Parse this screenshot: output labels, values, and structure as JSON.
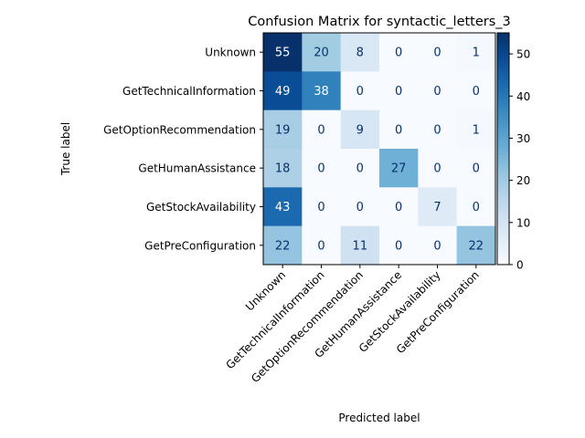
{
  "chart_data": {
    "type": "heatmap",
    "title": "Confusion Matrix for syntactic_letters_3",
    "xlabel": "Predicted label",
    "ylabel": "True label",
    "row_labels": [
      "Unknown",
      "GetTechnicalInformation",
      "GetOptionRecommendation",
      "GetHumanAssistance",
      "GetStockAvailability",
      "GetPreConfiguration"
    ],
    "col_labels": [
      "Unknown",
      "GetTechnicalInformation",
      "GetOptionRecommendation",
      "GetHumanAssistance",
      "GetStockAvailability",
      "GetPreConfiguration"
    ],
    "matrix": [
      [
        55,
        20,
        8,
        0,
        0,
        1
      ],
      [
        49,
        38,
        0,
        0,
        0,
        0
      ],
      [
        19,
        0,
        9,
        0,
        0,
        1
      ],
      [
        18,
        0,
        0,
        27,
        0,
        0
      ],
      [
        43,
        0,
        0,
        0,
        7,
        0
      ],
      [
        22,
        0,
        11,
        0,
        0,
        22
      ]
    ],
    "colormap": "Blues",
    "vmin": 0,
    "vmax": 55,
    "colorbar_ticks": [
      0,
      10,
      20,
      30,
      40,
      50
    ]
  }
}
